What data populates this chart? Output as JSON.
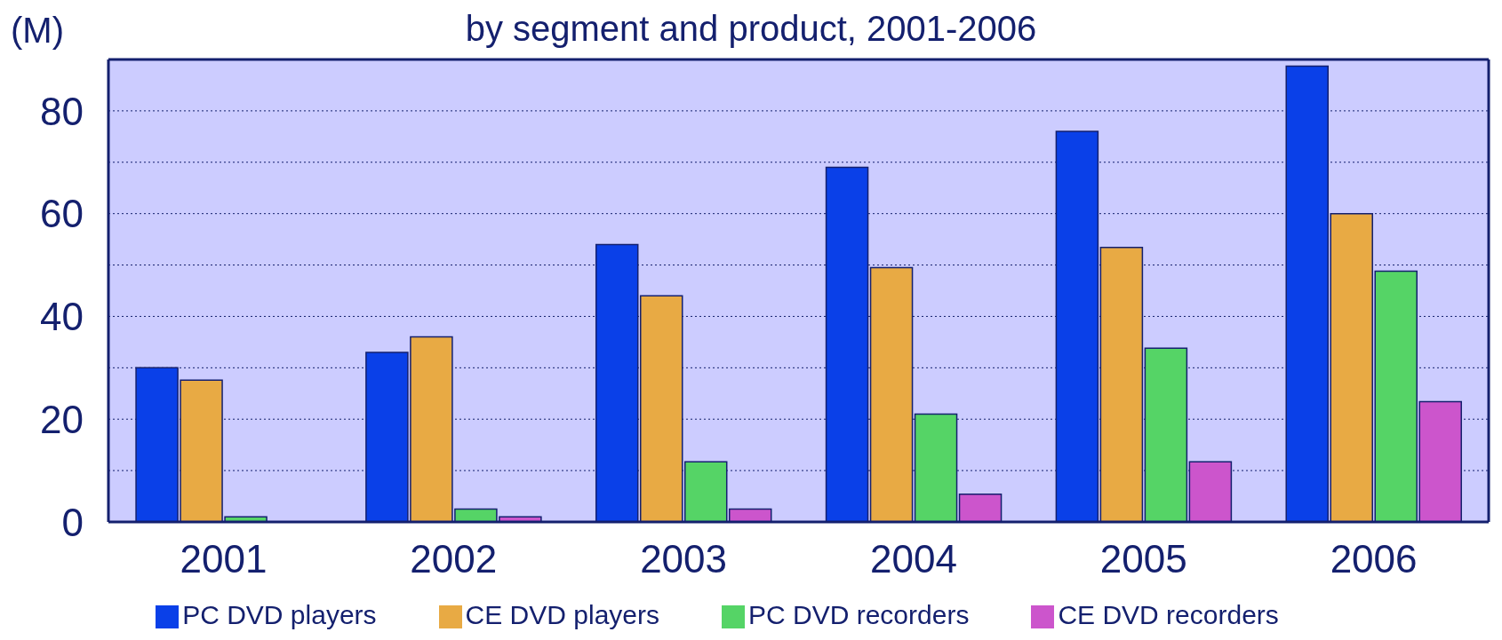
{
  "chart_data": {
    "type": "bar",
    "title": "by segment and product, 2001-2006",
    "ylabel": "(M)",
    "categories": [
      "2001",
      "2002",
      "2003",
      "2004",
      "2005",
      "2006"
    ],
    "series": [
      {
        "name": "PC DVD players",
        "color": "#0a40e8",
        "values": [
          30,
          33,
          54,
          69,
          76,
          88.7
        ]
      },
      {
        "name": "CE DVD players",
        "color": "#e8aa44",
        "values": [
          27.6,
          36,
          44,
          49.5,
          53.4,
          60
        ]
      },
      {
        "name": "PC DVD recorders",
        "color": "#55d466",
        "values": [
          1,
          2.5,
          11.7,
          21,
          33.8,
          48.8
        ]
      },
      {
        "name": "CE DVD recorders",
        "color": "#cc55cc",
        "values": [
          0,
          1,
          2.5,
          5.4,
          11.7,
          23.4
        ]
      }
    ],
    "ylim": [
      0,
      90
    ],
    "yticks": [
      0,
      {
        "value": 10,
        "label": null
      },
      20,
      {
        "value": 30,
        "label": null
      },
      40,
      {
        "value": 50,
        "label": null
      },
      60,
      {
        "value": 70,
        "label": null
      },
      80
    ],
    "grid": "y",
    "legend": "bottom"
  }
}
